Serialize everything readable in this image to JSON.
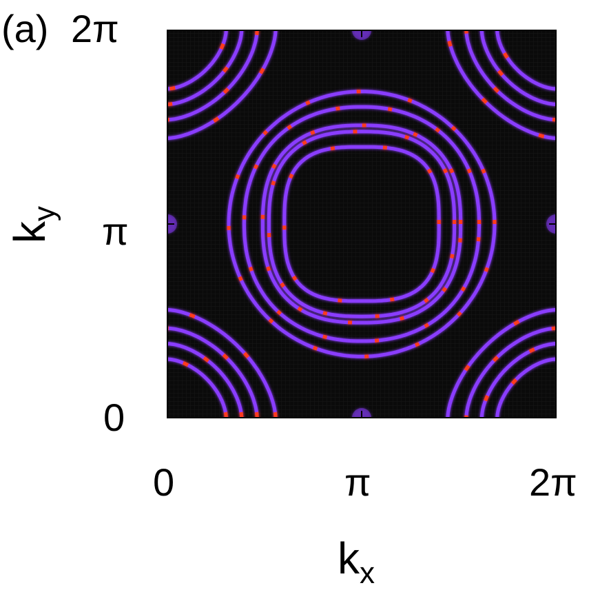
{
  "panel": {
    "label": "(a)"
  },
  "chart_data": {
    "type": "heatmap",
    "title": "",
    "xlabel": "k",
    "xlabel_sub": "x",
    "ylabel": "k",
    "ylabel_sub": "y",
    "xlim": [
      0,
      6.2832
    ],
    "ylim": [
      0,
      6.2832
    ],
    "x_ticks": [
      {
        "value": 0,
        "label": "0"
      },
      {
        "value": 3.1416,
        "label": "π"
      },
      {
        "value": 6.2832,
        "label": "2π"
      }
    ],
    "y_ticks": [
      {
        "value": 0,
        "label": "0"
      },
      {
        "value": 3.1416,
        "label": "π"
      },
      {
        "value": 6.2832,
        "label": "2π"
      }
    ],
    "background_color": "#0a0a0a",
    "band_color": "#8a3cff",
    "hot_color": "#ff3a1a",
    "center_contours": [
      {
        "half_width": 1.25,
        "exponent": 3.0
      },
      {
        "half_width": 1.5,
        "exponent": 2.6
      },
      {
        "half_width": 1.6,
        "exponent": 2.5
      },
      {
        "half_width": 1.9,
        "exponent": 2.2
      },
      {
        "half_width": 2.15,
        "exponent": 2.0
      }
    ],
    "corner_contours": [
      {
        "half_width": 0.95,
        "exponent": 1.7
      },
      {
        "half_width": 1.2,
        "exponent": 1.7
      },
      {
        "half_width": 1.45,
        "exponent": 1.7
      },
      {
        "half_width": 1.75,
        "exponent": 1.65
      }
    ]
  }
}
